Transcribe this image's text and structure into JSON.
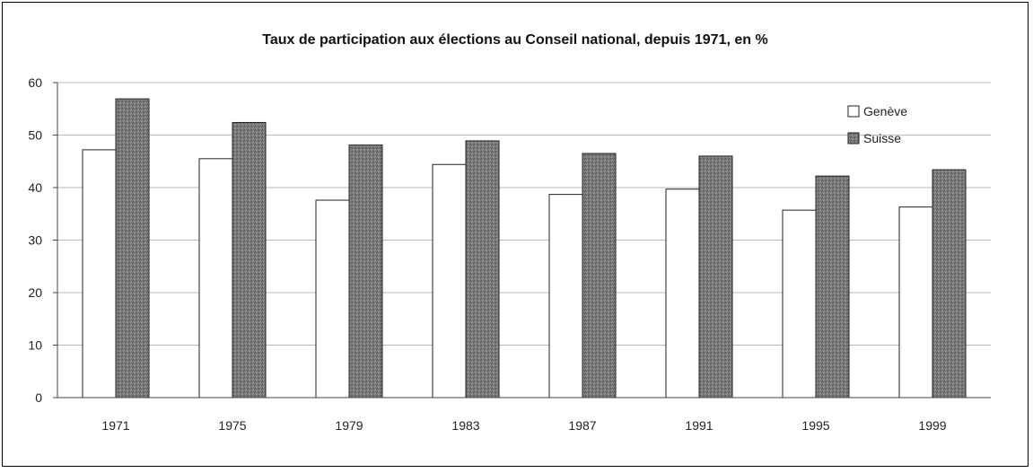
{
  "chart_data": {
    "type": "bar",
    "title": "Taux de participation aux élections au Conseil national, depuis 1971, en %",
    "categories": [
      "1971",
      "1975",
      "1979",
      "1983",
      "1987",
      "1991",
      "1995",
      "1999"
    ],
    "series": [
      {
        "name": "Genève",
        "values": [
          47.2,
          45.5,
          37.6,
          44.4,
          38.7,
          39.7,
          35.7,
          36.3
        ],
        "color": "#ffffff"
      },
      {
        "name": "Suisse",
        "values": [
          56.9,
          52.4,
          48.1,
          48.9,
          46.5,
          46.0,
          42.2,
          43.4
        ],
        "color": "#7a7a7a"
      }
    ],
    "ylim": [
      0,
      60
    ],
    "yticks": [
      0,
      10,
      20,
      30,
      40,
      50,
      60
    ],
    "grid": true,
    "legend_position": "top-right"
  }
}
